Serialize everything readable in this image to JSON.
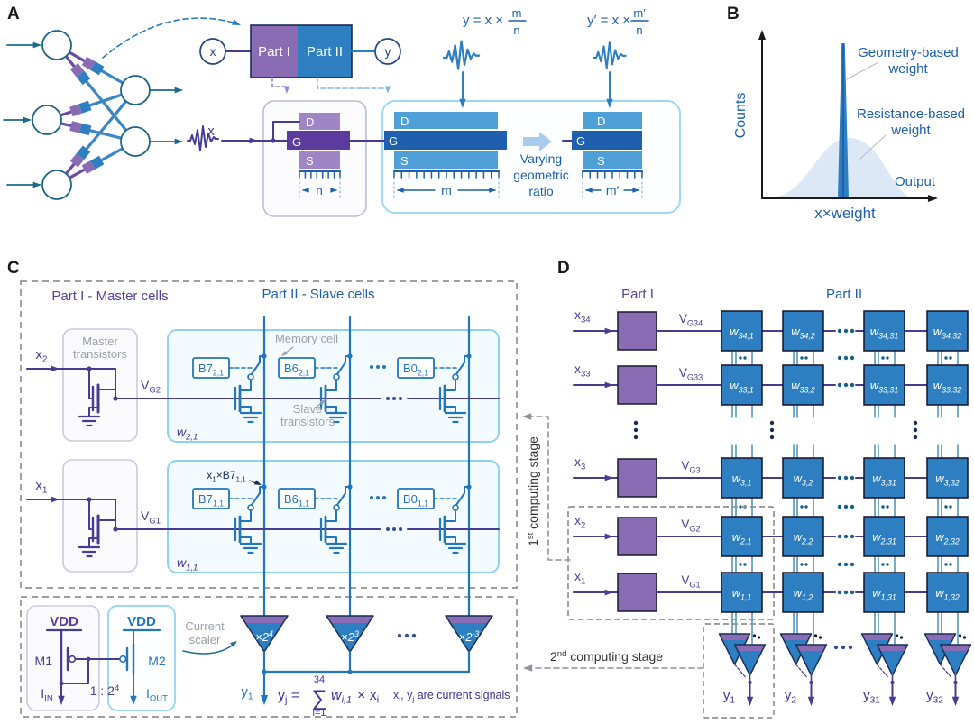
{
  "panel_labels": {
    "a": "A",
    "b": "B",
    "c": "C",
    "d": "D"
  },
  "colors": {
    "purple": "#8a6cb4",
    "purple_dark": "#5b3c9e",
    "purple_light": "#9f85c6",
    "wire_purple": "#463c94",
    "blue": "#2d7fc1",
    "blue_dark": "#1e5fae",
    "blue_light": "#4fa0d8",
    "wire_blue": "#2176bc",
    "teal": "#1d6a8e",
    "box_blue_border": "#8fd2f0",
    "box_lav_border": "#c9c9e0",
    "gray_label": "#9aa0a8",
    "dash_gray": "#8f9296",
    "navy": "#1a2c56",
    "eq_blue": "#1d5fae",
    "text_purple": "#5640a0",
    "eq_purple": "#3f3399",
    "gauss": "#dce8f5",
    "link_teal": "#2f7fa8",
    "dots_dark": "#16608a"
  },
  "a": {
    "x_node": "x",
    "y_node": "y",
    "part1": "Part I",
    "part2": "Part II",
    "eq1": "y = x ×",
    "eq1_num": "m",
    "eq1_den": "n",
    "eq2": "y′ = x ×",
    "eq2_num": "m′",
    "eq2_den": "n",
    "x_in": "x",
    "t1": {
      "d": "D",
      "g": "G",
      "s": "S",
      "dim": "n"
    },
    "t2": {
      "d": "D",
      "g": "G",
      "s": "S",
      "dim": "m"
    },
    "t3": {
      "d": "D",
      "g": "G",
      "s": "S",
      "dim": "m′"
    },
    "varying": [
      "Varying",
      "geometric",
      "ratio"
    ]
  },
  "b": {
    "ylabel": "Counts",
    "xlabel": "Output",
    "xweight": "x×weight",
    "legend_spike": [
      "Geometry-based",
      "weight"
    ],
    "legend_gauss": [
      "Resistance-based",
      "weight"
    ]
  },
  "c": {
    "title1": "Part I - Master cells",
    "title2": "Part II - Slave cells",
    "master_box": [
      "Master",
      "transistors"
    ],
    "memory_cell": "Memory cell",
    "slave_trans": [
      "Slave",
      "transistors"
    ],
    "rows": [
      {
        "x": "x_{2}",
        "vg": "V_{G2}",
        "w": "w_{2,1}",
        "cells": [
          "B7_{2,1}",
          "B6_{2,1}",
          "B0_{2,1}"
        ]
      },
      {
        "x": "x_{1}",
        "vg": "V_{G1}",
        "w": "w_{1,1}",
        "cells": [
          "B7_{1,1}",
          "B6_{1,1}",
          "B0_{1,1}"
        ]
      }
    ],
    "annot": "x_{1}×B7_{1,1}",
    "scalers": [
      "×2^{4}",
      "×2^{3}",
      "×2^{-3}"
    ],
    "vdd": "VDD",
    "m1": "M1",
    "m2": "M2",
    "iin": "I_{IN}",
    "iout": "I_{OUT}",
    "ratio": "1 : 2^{4}",
    "current_scaler": [
      "Current",
      "scaler"
    ],
    "y1": "y_{1}",
    "eq": {
      "lhs": "y_{j} =",
      "sum_top": "34",
      "sigma": "∑",
      "sum_bot": "i=1",
      "rhs_w": "w_{i,1}",
      "rhs_x": " × x_{i}"
    },
    "note": "x_{i}, y_{j} are current signals",
    "stage1": "1^{st} computing stage",
    "stage2": "2^{nd} computing stage"
  },
  "d": {
    "part1": "Part I",
    "part2": "Part II",
    "rows": [
      {
        "x": "x_{34}",
        "vg": "V_{G34}",
        "w": [
          "w_{34,1}",
          "w_{34,2}",
          "w_{34,31}",
          "w_{34,32}"
        ]
      },
      {
        "x": "x_{33}",
        "vg": "V_{G33}",
        "w": [
          "w_{33,1}",
          "w_{33,2}",
          "w_{33,31}",
          "w_{33,32}"
        ]
      },
      {
        "x": "x_{3}",
        "vg": "V_{G3}",
        "w": [
          "w_{3,1}",
          "w_{3,2}",
          "w_{3,31}",
          "w_{3,32}"
        ]
      },
      {
        "x": "x_{2}",
        "vg": "V_{G2}",
        "w": [
          "w_{2,1}",
          "w_{2,2}",
          "w_{2,31}",
          "w_{2,32}"
        ]
      },
      {
        "x": "x_{1}",
        "vg": "V_{G1}",
        "w": [
          "w_{1,1}",
          "w_{1,2}",
          "w_{1,31}",
          "w_{1,32}"
        ]
      }
    ],
    "outputs": [
      "y_{1}",
      "y_{2}",
      "y_{31}",
      "y_{32}"
    ]
  }
}
